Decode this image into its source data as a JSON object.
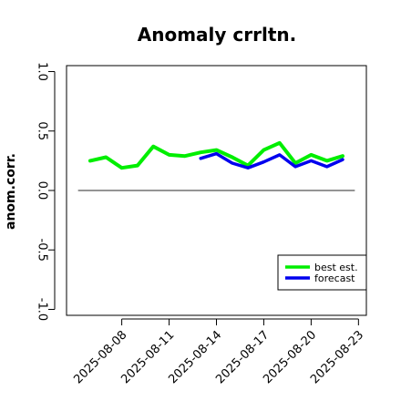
{
  "chart_data": {
    "type": "line",
    "title": "Anomaly crrltn.",
    "xlabel": "",
    "ylabel": "anom.corr.",
    "ylim": [
      -1.05,
      1.05
    ],
    "yticks": [
      -1.0,
      -0.5,
      0.0,
      0.5,
      1.0
    ],
    "ytick_labels": [
      "-1.0",
      "-0.5",
      "0.0",
      "0.5",
      "1.0"
    ],
    "x": [
      "2025-08-05",
      "2025-08-06",
      "2025-08-07",
      "2025-08-08",
      "2025-08-09",
      "2025-08-10",
      "2025-08-11",
      "2025-08-12",
      "2025-08-13",
      "2025-08-14",
      "2025-08-15",
      "2025-08-16",
      "2025-08-17",
      "2025-08-18",
      "2025-08-19",
      "2025-08-20",
      "2025-08-21",
      "2025-08-22",
      "2025-08-23"
    ],
    "xticks": [
      "2025-08-08",
      "2025-08-11",
      "2025-08-14",
      "2025-08-17",
      "2025-08-20",
      "2025-08-23"
    ],
    "xtick_highlight": "2025-08-14",
    "xtick_highlight_color": "#228B22",
    "reference_line": 0.0,
    "series": [
      {
        "name": "best est.",
        "color": "#00ee00",
        "values": [
          null,
          0.25,
          0.28,
          0.19,
          0.21,
          0.37,
          0.3,
          0.29,
          0.32,
          0.34,
          0.28,
          0.21,
          0.34,
          0.4,
          0.23,
          0.3,
          0.25,
          0.29,
          null
        ]
      },
      {
        "name": "forecast",
        "color": "#0000ee",
        "values": [
          null,
          null,
          null,
          null,
          null,
          null,
          null,
          null,
          0.27,
          0.31,
          0.23,
          0.19,
          0.24,
          0.3,
          0.2,
          0.25,
          0.2,
          0.26,
          null
        ]
      }
    ],
    "legend_position": "bottom-right",
    "grid": false
  }
}
